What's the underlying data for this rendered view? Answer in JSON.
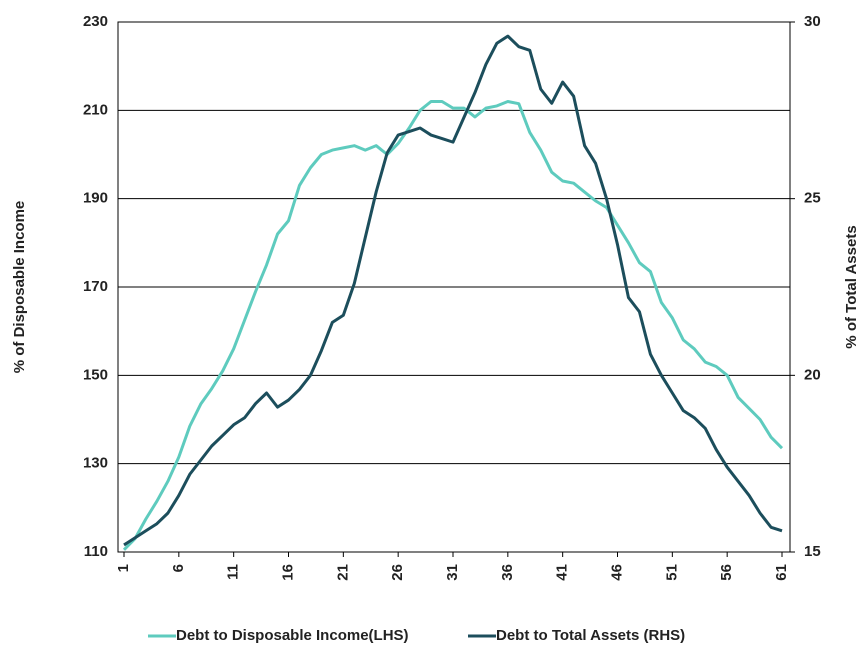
{
  "chart_data": {
    "type": "line",
    "y_label": "% of Disposable Income",
    "y2_label": "% of Total Assets",
    "x": [
      1,
      2,
      3,
      4,
      5,
      6,
      7,
      8,
      9,
      10,
      11,
      12,
      13,
      14,
      15,
      16,
      17,
      18,
      19,
      20,
      21,
      22,
      23,
      24,
      25,
      26,
      27,
      28,
      29,
      30,
      31,
      32,
      33,
      34,
      35,
      36,
      37,
      38,
      39,
      40,
      41,
      42,
      43,
      44,
      45,
      46,
      47,
      48,
      49,
      50,
      51,
      52,
      53,
      54,
      55,
      56,
      57,
      58,
      59,
      60,
      61
    ],
    "xlim": [
      1,
      61
    ],
    "xticks": [
      1,
      6,
      11,
      16,
      21,
      26,
      31,
      36,
      41,
      46,
      51,
      56,
      61
    ],
    "ylim": [
      110,
      230
    ],
    "yticks": [
      110,
      130,
      150,
      170,
      190,
      210,
      230
    ],
    "y2lim": [
      15,
      30
    ],
    "y2ticks": [
      15,
      20,
      25,
      30
    ],
    "grid": true,
    "legend": "bottom",
    "series": [
      {
        "name": "Debt to Disposable Income(LHS)",
        "color": "#5ecbbe",
        "values": [
          110.5,
          113,
          117.5,
          121.5,
          126,
          131.5,
          138.5,
          143.5,
          147,
          151,
          156,
          162.5,
          169,
          175,
          182,
          185,
          193,
          197,
          200,
          201,
          201.5,
          202,
          201,
          202,
          200,
          202.5,
          206,
          210,
          212,
          212,
          210.5,
          210.5,
          208.5,
          210.5,
          211,
          212,
          211.5,
          205,
          201,
          196,
          194,
          193.5,
          191.5,
          189.5,
          188,
          184,
          180,
          175.5,
          173.5,
          166.5,
          163,
          158,
          156,
          153,
          152,
          150,
          145,
          142.5,
          140,
          136,
          133.5
        ]
      },
      {
        "name": "Debt to Total Assets (RHS)",
        "color": "#1c4e5c",
        "axis": "y2",
        "values": [
          15.2,
          15.4,
          15.6,
          15.8,
          16.1,
          16.6,
          17.2,
          17.6,
          18,
          18.3,
          18.6,
          18.8,
          19.2,
          19.5,
          19.1,
          19.3,
          19.6,
          20,
          20.7,
          21.5,
          21.7,
          22.6,
          23.9,
          25.2,
          26.3,
          26.8,
          26.9,
          27,
          26.8,
          26.7,
          26.6,
          27.3,
          28,
          28.8,
          29.4,
          29.6,
          29.3,
          29.2,
          28.1,
          27.7,
          28.3,
          27.9,
          26.5,
          26,
          25,
          23.7,
          22.2,
          21.8,
          20.6,
          20,
          19.5,
          19,
          18.8,
          18.5,
          17.9,
          17.4,
          17,
          16.6,
          16.1,
          15.7,
          15.6
        ]
      }
    ]
  }
}
